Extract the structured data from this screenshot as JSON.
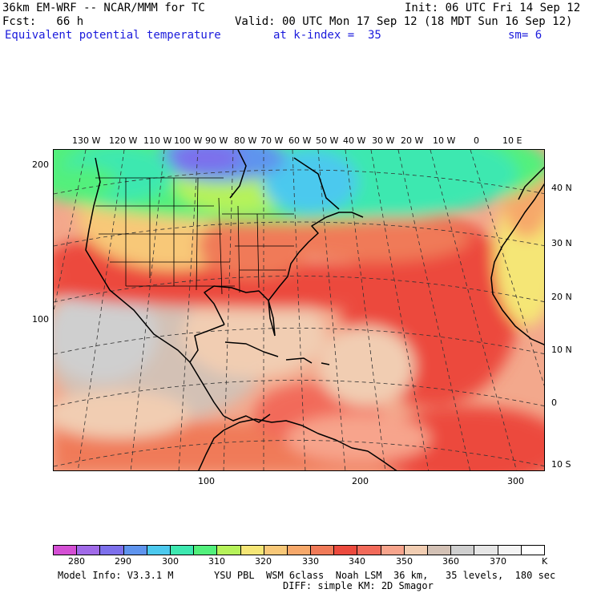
{
  "header": {
    "line1_left": "36km EM-WRF -- NCAR/MMM for TC",
    "line1_right": "Init: 06 UTC Fri 14 Sep 12",
    "line2_left": "Fcst:   66 h",
    "line2_right": "Valid: 00 UTC Mon 17 Sep 12 (18 MDT Sun 16 Sep 12)",
    "line3_field": "Equivalent potential temperature",
    "line3_level": "at k-index =  35",
    "line3_sm": "sm= 6"
  },
  "map": {
    "longitude_labels": [
      "130 W",
      "120 W",
      "110 W",
      "100 W",
      "90 W",
      "80 W",
      "70 W",
      "60 W",
      "50 W",
      "40 W",
      "30 W",
      "20 W",
      "10 W",
      "0",
      "10 E"
    ],
    "latitude_labels": [
      "40 N",
      "30 N",
      "20 N",
      "10 N",
      "0",
      "10 S"
    ],
    "grid_y_labels": [
      "200",
      "100"
    ],
    "grid_x_labels": [
      "100",
      "200",
      "300"
    ]
  },
  "legend": {
    "colors": [
      "#d44fd4",
      "#a06ae8",
      "#7d70ec",
      "#5f94ee",
      "#4cc9ee",
      "#3de8b0",
      "#52f07c",
      "#b6f25a",
      "#f5e676",
      "#f8c878",
      "#f6a86a",
      "#f07a58",
      "#ec4a3e",
      "#f26a5a",
      "#f7a48c",
      "#f1cdb2",
      "#d3c1b5",
      "#cfcfcf",
      "#e6e6e6",
      "#f4f4f4",
      "#ffffff"
    ],
    "tick_labels": [
      "280",
      "290",
      "300",
      "310",
      "320",
      "330",
      "340",
      "350",
      "360",
      "370"
    ],
    "unit": "K"
  },
  "footer": {
    "model_info": "Model Info: V3.3.1 M",
    "physics_line1": "YSU PBL  WSM 6class  Noah LSM  36 km,   35 levels,  180 sec",
    "physics_line2": "DIFF: simple KM: 2D Smagor"
  }
}
